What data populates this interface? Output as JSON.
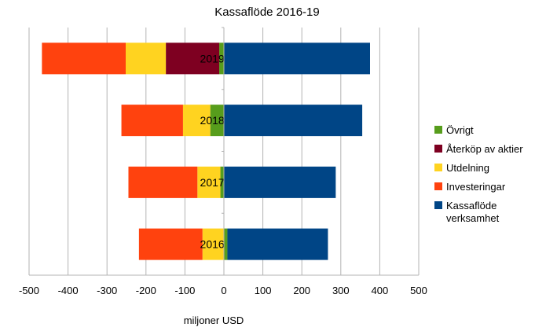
{
  "chart_data": {
    "type": "bar",
    "orientation": "horizontal",
    "stacked": true,
    "title": "Kassaflöde 2016-19",
    "xlabel": "miljoner USD",
    "ylabel": "",
    "xlim": [
      -500,
      500
    ],
    "xticks": [
      "-500",
      "-400",
      "-300",
      "-200",
      "-100",
      "0",
      "100",
      "200",
      "300",
      "400",
      "500"
    ],
    "grid": "vertical",
    "legend_position": "right",
    "categories": [
      "2019",
      "2018",
      "2017",
      "2016"
    ],
    "series": [
      {
        "name": "Övrigt",
        "color": "#579d1c",
        "values": [
          -12,
          -35,
          -9,
          9
        ]
      },
      {
        "name": "Återköp av aktier",
        "color": "#7e0021",
        "values": [
          -137,
          0,
          0,
          0
        ]
      },
      {
        "name": "Utdelning",
        "color": "#ffd320",
        "values": [
          -103,
          -70,
          -59,
          -55
        ]
      },
      {
        "name": "Investeringar",
        "color": "#ff420e",
        "values": [
          -215,
          -158,
          -177,
          -163
        ]
      },
      {
        "name": "Kassaflöde verksamhet",
        "color": "#004586",
        "values": [
          375,
          355,
          287,
          258
        ]
      }
    ],
    "legend": [
      {
        "lines": [
          "Övrigt"
        ],
        "series": 0
      },
      {
        "lines": [
          "Återköp av aktier"
        ],
        "series": 1
      },
      {
        "lines": [
          "Utdelning"
        ],
        "series": 2
      },
      {
        "lines": [
          "Investeringar"
        ],
        "series": 3
      },
      {
        "lines": [
          "Kassaflöde",
          "verksamhet"
        ],
        "series": 4
      }
    ]
  }
}
